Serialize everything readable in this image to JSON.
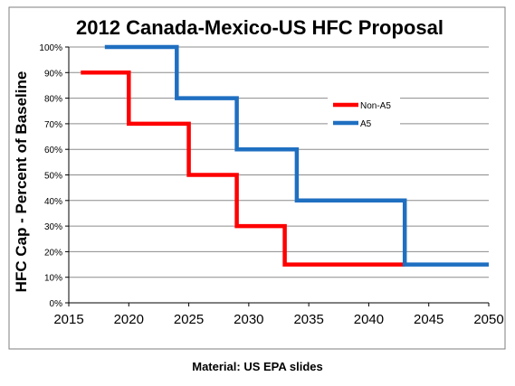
{
  "chart_data": {
    "type": "line",
    "title": "2012 Canada-Mexico-US HFC Proposal",
    "xlabel": "",
    "ylabel": "HFC Cap - Percent of Baseline",
    "xlim": [
      2015,
      2050
    ],
    "ylim": [
      0,
      100
    ],
    "x_ticks": [
      "2015",
      "2020",
      "2025",
      "2030",
      "2035",
      "2040",
      "2045",
      "2050"
    ],
    "y_ticks": [
      "0%",
      "10%",
      "20%",
      "30%",
      "40%",
      "50%",
      "60%",
      "70%",
      "80%",
      "90%",
      "100%"
    ],
    "grid": true,
    "legend_position": "upper-right",
    "series": [
      {
        "name": "Non-A5",
        "color": "#ff0000",
        "points": [
          [
            2016,
            90
          ],
          [
            2020,
            90
          ],
          [
            2020,
            70
          ],
          [
            2025,
            70
          ],
          [
            2025,
            50
          ],
          [
            2029,
            50
          ],
          [
            2029,
            30
          ],
          [
            2033,
            30
          ],
          [
            2033,
            15
          ],
          [
            2043,
            15
          ]
        ]
      },
      {
        "name": "A5",
        "color": "#1f6fc1",
        "points": [
          [
            2018,
            100
          ],
          [
            2024,
            100
          ],
          [
            2024,
            80
          ],
          [
            2029,
            80
          ],
          [
            2029,
            60
          ],
          [
            2034,
            60
          ],
          [
            2034,
            40
          ],
          [
            2043,
            40
          ],
          [
            2043,
            15
          ],
          [
            2050,
            15
          ]
        ]
      }
    ]
  },
  "caption": "Material: US EPA slides"
}
